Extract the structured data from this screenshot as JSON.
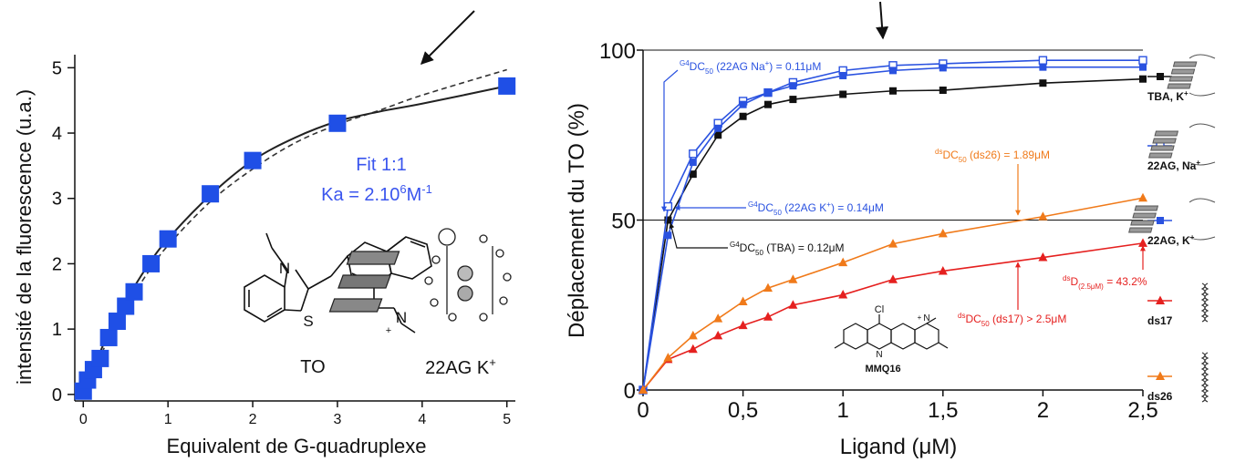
{
  "chart_data": [
    {
      "type": "scatter",
      "xlabel": "Equivalent de G-quadruplexe",
      "ylabel": "intensité de la fluorescence (u.a.)",
      "xlim": [
        -0.1,
        5.1
      ],
      "ylim": [
        -0.1,
        5.2
      ],
      "x_ticks": [
        0,
        1,
        2,
        3,
        4,
        5
      ],
      "y_ticks": [
        0,
        1,
        2,
        3,
        4,
        5
      ],
      "points": {
        "x": [
          0,
          0.05,
          0.12,
          0.2,
          0.3,
          0.4,
          0.5,
          0.6,
          0.8,
          1.0,
          1.5,
          2.0,
          3.0,
          5.0
        ],
        "y": [
          0.05,
          0.22,
          0.38,
          0.55,
          0.87,
          1.12,
          1.35,
          1.57,
          2.0,
          2.38,
          3.07,
          3.58,
          4.15,
          4.72
        ]
      },
      "fit_solid": {
        "x": [
          0,
          0.25,
          0.5,
          0.75,
          1.0,
          1.5,
          2.0,
          2.5,
          3.0,
          3.5,
          4.0,
          5.0
        ],
        "y": [
          0,
          0.8,
          1.42,
          1.95,
          2.38,
          3.05,
          3.58,
          3.93,
          4.18,
          4.33,
          4.45,
          4.72
        ]
      },
      "fit_dashed": {
        "x": [
          0,
          0.25,
          0.5,
          0.75,
          1.0,
          1.5,
          2.0,
          2.5,
          3.0,
          3.5,
          4.0,
          5.0
        ],
        "y": [
          0,
          0.72,
          1.33,
          1.84,
          2.28,
          2.95,
          3.45,
          3.85,
          4.13,
          4.35,
          4.58,
          4.97
        ]
      },
      "annotations": {
        "fit": "Fit 1:1",
        "ka_prefix": "Ka = 2.10",
        "ka_exp": "6",
        "ka_unit": "M",
        "ka_unit_exp": "-1",
        "molecule": "TO",
        "quadruplex": "22AG K",
        "quadruplex_sup": "+",
        "atom_N1": "N",
        "atom_S": "S",
        "atom_N2": "N",
        "atom_plus": "+"
      },
      "colors": {
        "marker": "#1f4fe6",
        "fit_text": "#3a55ee",
        "curve": "#222222"
      }
    },
    {
      "type": "line",
      "xlabel": "Ligand (μM)",
      "ylabel": "Déplacement du TO (%)",
      "xlim": [
        0,
        2.5
      ],
      "ylim": [
        0,
        100
      ],
      "x_ticks": [
        "0",
        "0,5",
        "1",
        "1,5",
        "2",
        "2,5"
      ],
      "x_tick_values": [
        0,
        0.5,
        1,
        1.5,
        2,
        2.5
      ],
      "y_ticks": [
        0,
        50,
        100
      ],
      "reference_lines": [
        50,
        100
      ],
      "x": [
        0,
        0.125,
        0.25,
        0.375,
        0.5,
        0.625,
        0.75,
        1.0,
        1.25,
        1.5,
        2.0,
        2.5
      ],
      "series": [
        {
          "name": "TBA, K",
          "name_sup": "+",
          "color": "#111111",
          "marker": "square-filled",
          "values": [
            0,
            50,
            63.5,
            75,
            80.5,
            84,
            85.5,
            87,
            88,
            88.2,
            90.3,
            91.5
          ]
        },
        {
          "name": "22AG, Na",
          "name_sup": "+",
          "color": "#2a52e0",
          "marker": "square-open",
          "values": [
            0,
            54,
            69.5,
            78.5,
            85,
            87.5,
            90.5,
            94,
            95.5,
            96,
            97,
            97
          ]
        },
        {
          "name": "22AG, K",
          "name_sup": "+",
          "color": "#2a52e0",
          "marker": "square-filled",
          "values": [
            0,
            45.5,
            67,
            77,
            84,
            87.5,
            89.5,
            92.5,
            94,
            94.8,
            95,
            95
          ]
        },
        {
          "name": "ds17",
          "name_sup": "",
          "color": "#e5201f",
          "marker": "triangle-filled",
          "values": [
            0,
            9,
            12,
            16,
            19,
            21.5,
            25,
            28,
            32.5,
            35,
            39,
            43.2
          ]
        },
        {
          "name": "ds26",
          "name_sup": "",
          "color": "#f07a1a",
          "marker": "triangle-filled",
          "values": [
            0,
            9.5,
            16,
            21,
            26,
            30,
            32.5,
            37.5,
            43,
            46,
            51,
            56.5
          ]
        }
      ],
      "annotations": [
        {
          "id": "na",
          "color": "#2a52e0",
          "sup": "G4",
          "main": "DC",
          "sub": "50",
          "rest": " (22AG Na",
          "rest_sup": "+",
          "rest2": ") = 0.11μM"
        },
        {
          "id": "k",
          "color": "#2a52e0",
          "sup": "G4",
          "main": "DC",
          "sub": "50",
          "rest": " (22AG K",
          "rest_sup": "+",
          "rest2": ") = 0.14μM"
        },
        {
          "id": "tba",
          "color": "#111111",
          "sup": "G4",
          "main": "DC",
          "sub": "50",
          "rest": " (TBA) = 0.12μM",
          "rest_sup": "",
          "rest2": ""
        },
        {
          "id": "ds26",
          "color": "#f07a1a",
          "sup": "ds",
          "main": "DC",
          "sub": "50",
          "rest": " (ds26) = 1.89μM",
          "rest_sup": "",
          "rest2": ""
        },
        {
          "id": "d25",
          "color": "#e5201f",
          "sup": "ds",
          "main": "D",
          "sub": "(2.5μM)",
          "rest": " = 43.2%",
          "rest_sup": "",
          "rest2": ""
        },
        {
          "id": "ds17",
          "color": "#e5201f",
          "sup": "ds",
          "main": "DC",
          "sub": "50",
          "rest": " (ds17) > 2.5μM",
          "rest_sup": "",
          "rest2": ""
        }
      ],
      "compound": {
        "name": "MMQ16",
        "atom_Cl": "Cl",
        "atom_N1": "N",
        "atom_N2": "N",
        "atom_plus": "+"
      }
    }
  ]
}
